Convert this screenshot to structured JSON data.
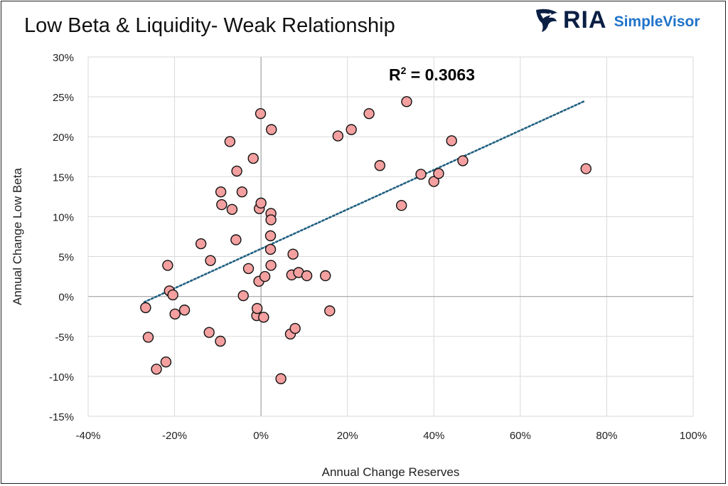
{
  "header": {
    "title": "Low Beta & Liquidity- Weak Relationship",
    "logo_ria": "RIA",
    "logo_sv": "SimpleVisor"
  },
  "colors": {
    "point_fill": "#f4a0a0",
    "point_stroke": "#111111",
    "trendline": "#1f5f80",
    "grid": "#d9d9d9",
    "logo_dark": "#0b1f44",
    "logo_blue": "#1f73c9"
  },
  "chart_data": {
    "type": "scatter",
    "title": "Low Beta & Liquidity- Weak Relationship",
    "xlabel": "Annual Change Reserves",
    "ylabel": "Annual Change Low Beta",
    "xlim": [
      -0.4,
      1.0
    ],
    "ylim": [
      -0.15,
      0.3
    ],
    "x_ticks": [
      -0.4,
      -0.2,
      0,
      0.2,
      0.4,
      0.6,
      0.8,
      1.0
    ],
    "x_tick_labels": [
      "-40%",
      "-20%",
      "0%",
      "20%",
      "40%",
      "60%",
      "80%",
      "100%"
    ],
    "y_ticks": [
      -0.15,
      -0.1,
      -0.05,
      0,
      0.05,
      0.1,
      0.15,
      0.2,
      0.25,
      0.3
    ],
    "y_tick_labels": [
      "-15%",
      "-10%",
      "-5%",
      "0%",
      "5%",
      "10%",
      "15%",
      "20%",
      "25%",
      "30%"
    ],
    "grid": true,
    "annotation": {
      "r2_label": "R",
      "r2_sup": "2",
      "r2_value": " = 0.3063"
    },
    "trendline": {
      "x": [
        -0.27,
        0.75
      ],
      "y": [
        -0.007,
        0.245
      ]
    },
    "points": [
      {
        "x": -0.267,
        "y": -0.014
      },
      {
        "x": -0.261,
        "y": -0.051
      },
      {
        "x": -0.242,
        "y": -0.091
      },
      {
        "x": -0.22,
        "y": -0.082
      },
      {
        "x": -0.216,
        "y": 0.039
      },
      {
        "x": -0.212,
        "y": 0.007
      },
      {
        "x": -0.204,
        "y": 0.002
      },
      {
        "x": -0.199,
        "y": -0.022
      },
      {
        "x": -0.177,
        "y": -0.017
      },
      {
        "x": -0.139,
        "y": 0.066
      },
      {
        "x": -0.12,
        "y": -0.045
      },
      {
        "x": -0.117,
        "y": 0.045
      },
      {
        "x": -0.094,
        "y": -0.056
      },
      {
        "x": -0.093,
        "y": 0.131
      },
      {
        "x": -0.091,
        "y": 0.115
      },
      {
        "x": -0.072,
        "y": 0.194
      },
      {
        "x": -0.067,
        "y": 0.109
      },
      {
        "x": -0.058,
        "y": 0.071
      },
      {
        "x": -0.056,
        "y": 0.157
      },
      {
        "x": -0.044,
        "y": 0.131
      },
      {
        "x": -0.041,
        "y": 0.001
      },
      {
        "x": -0.029,
        "y": 0.035
      },
      {
        "x": -0.018,
        "y": 0.173
      },
      {
        "x": -0.01,
        "y": -0.024
      },
      {
        "x": -0.009,
        "y": -0.015
      },
      {
        "x": -0.005,
        "y": 0.019
      },
      {
        "x": -0.004,
        "y": 0.11
      },
      {
        "x": -0.001,
        "y": 0.229
      },
      {
        "x": 0.0,
        "y": 0.117
      },
      {
        "x": 0.006,
        "y": -0.026
      },
      {
        "x": 0.009,
        "y": 0.025
      },
      {
        "x": 0.022,
        "y": 0.059
      },
      {
        "x": 0.022,
        "y": 0.076
      },
      {
        "x": 0.023,
        "y": 0.104
      },
      {
        "x": 0.023,
        "y": 0.096
      },
      {
        "x": 0.023,
        "y": 0.039
      },
      {
        "x": 0.024,
        "y": 0.209
      },
      {
        "x": 0.046,
        "y": -0.103
      },
      {
        "x": 0.068,
        "y": -0.047
      },
      {
        "x": 0.071,
        "y": 0.027
      },
      {
        "x": 0.074,
        "y": 0.053
      },
      {
        "x": 0.079,
        "y": -0.04
      },
      {
        "x": 0.087,
        "y": 0.03
      },
      {
        "x": 0.106,
        "y": 0.026
      },
      {
        "x": 0.149,
        "y": 0.026
      },
      {
        "x": 0.159,
        "y": -0.018
      },
      {
        "x": 0.178,
        "y": 0.201
      },
      {
        "x": 0.209,
        "y": 0.209
      },
      {
        "x": 0.25,
        "y": 0.229
      },
      {
        "x": 0.275,
        "y": 0.164
      },
      {
        "x": 0.325,
        "y": 0.114
      },
      {
        "x": 0.337,
        "y": 0.244
      },
      {
        "x": 0.37,
        "y": 0.153
      },
      {
        "x": 0.4,
        "y": 0.144
      },
      {
        "x": 0.411,
        "y": 0.154
      },
      {
        "x": 0.441,
        "y": 0.195
      },
      {
        "x": 0.467,
        "y": 0.17
      },
      {
        "x": 0.752,
        "y": 0.16
      }
    ]
  }
}
